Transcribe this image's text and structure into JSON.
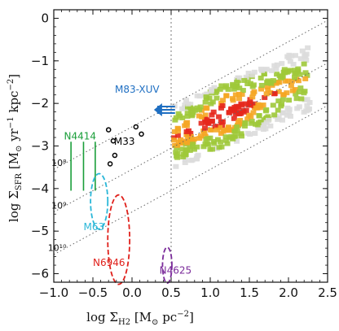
{
  "chart_data": {
    "type": "scatter",
    "xlabel_main": "log Σ",
    "xlabel_sub": "H2",
    "xlabel_unit": " [M",
    "xlabel_sun": "⊙",
    "xlabel_tail": " pc",
    "xlabel_exp": "−2",
    "xlabel_close": "]",
    "ylabel_main": "log Σ",
    "ylabel_sub": "SFR",
    "ylabel_unit": " [M",
    "ylabel_sun": "⊙",
    "ylabel_mid": " yr",
    "ylabel_exp1": "−1",
    "ylabel_kpc": " kpc",
    "ylabel_exp2": "−2",
    "ylabel_close": "]",
    "xlim": [
      -1.0,
      2.5
    ],
    "ylim": [
      -6.2,
      0.2
    ],
    "xticks": [
      -1.0,
      -0.5,
      0.0,
      0.5,
      1.0,
      1.5,
      2.0,
      2.5
    ],
    "xtick_labels": [
      "−1.0",
      "−0.5",
      "0.0",
      "0.5",
      "1.0",
      "1.5",
      "2.0",
      "2.5"
    ],
    "yticks": [
      0,
      -1,
      -2,
      -3,
      -4,
      -5,
      -6
    ],
    "ytick_labels": [
      "0",
      "−1",
      "−2",
      "−3",
      "−4",
      "−5",
      "−6"
    ],
    "vertical_line_x": 0.5,
    "depletion_lines": [
      {
        "label": "10⁸",
        "log_time": 8
      },
      {
        "label": "10⁹",
        "log_time": 9
      },
      {
        "label": "10¹⁰",
        "log_time": 10
      }
    ],
    "depletion_label_x": -0.88,
    "colors": {
      "n4414": "#1a9e3a",
      "m83": "#1f6fc2",
      "m63": "#2ab7d8",
      "n6946": "#e0201b",
      "n4625": "#7a2a9a",
      "m33": "#000000",
      "density_light": "#dcdcdc",
      "density_green": "#9fc93a",
      "density_orange": "#f5a623",
      "density_red": "#e5271c"
    },
    "objects": {
      "m83_xuv": {
        "label": "M83-XUV",
        "arrow_from_x": 0.55,
        "arrow_to_x": 0.28,
        "y": -2.15
      },
      "n4414": {
        "label": "N4414",
        "lines_x": [
          -0.78,
          -0.62,
          -0.47
        ],
        "y_top": -2.9,
        "y_bottom": -4.05
      },
      "m33": {
        "label": "M33",
        "points": [
          {
            "x": 0.05,
            "y": -2.55
          },
          {
            "x": 0.12,
            "y": -2.72
          },
          {
            "x": -0.3,
            "y": -2.62
          },
          {
            "x": -0.24,
            "y": -2.88
          },
          {
            "x": -0.22,
            "y": -3.22
          },
          {
            "x": -0.28,
            "y": -3.42
          }
        ]
      },
      "m63": {
        "label": "M63",
        "center_x": -0.42,
        "center_y": -4.3,
        "rx": 0.11,
        "ry": 0.65
      },
      "n6946": {
        "label": "N6946",
        "center_x": -0.17,
        "center_y": -5.2,
        "rx": 0.14,
        "ry": 1.05
      },
      "n4625": {
        "label": "N4625",
        "center_x": 0.45,
        "center_y": -5.8,
        "rx": 0.06,
        "ry": 0.42
      }
    },
    "grid": false
  }
}
